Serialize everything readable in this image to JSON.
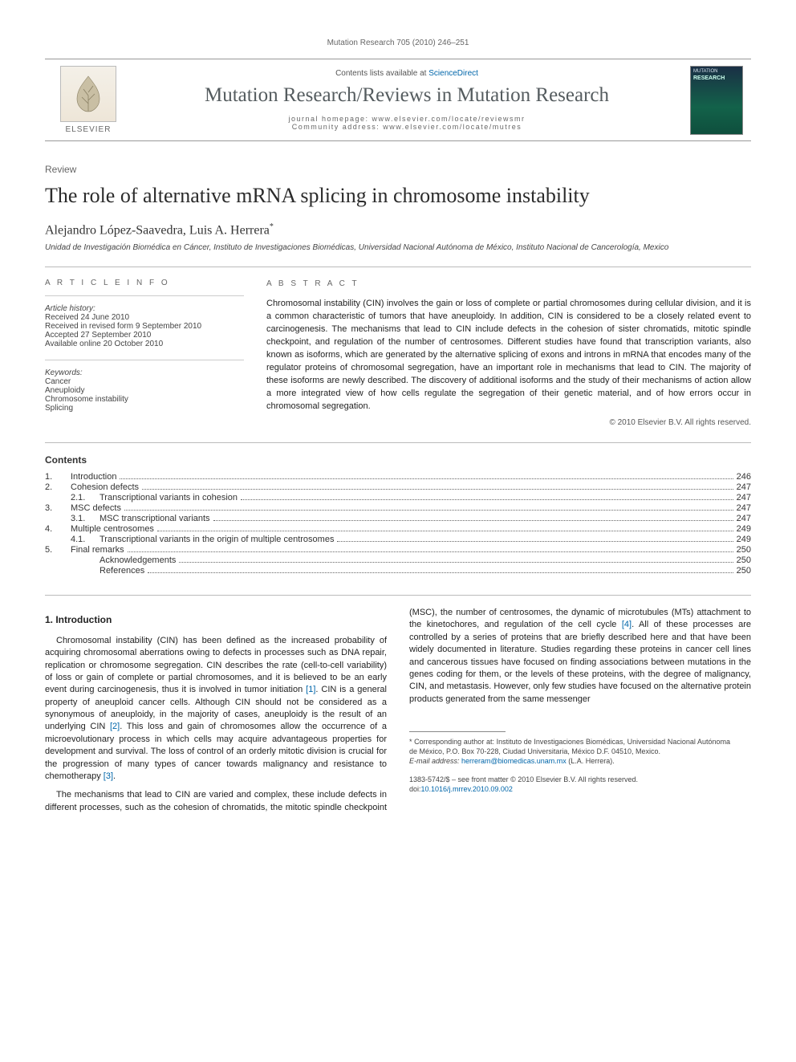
{
  "running_head": "Mutation Research 705 (2010) 246–251",
  "masthead": {
    "contents_prefix": "Contents lists available at ",
    "contents_link": "ScienceDirect",
    "banner_title": "Mutation Research/Reviews in Mutation Research",
    "homepage_label": "journal homepage: www.elsevier.com/locate/reviewsmr",
    "community_label": "Community address: www.elsevier.com/locate/mutres",
    "publisher": "ELSEVIER",
    "cover_top": "MUTATION",
    "cover_title": "RESEARCH"
  },
  "doc_type": "Review",
  "title": "The role of alternative mRNA splicing in chromosome instability",
  "authors": "Alejandro López-Saavedra, Luis A. Herrera",
  "author_marker": "*",
  "affiliation": "Unidad de Investigación Biomédica en Cáncer, Instituto de Investigaciones Biomédicas, Universidad Nacional Autónoma de México, Instituto Nacional de Cancerología, Mexico",
  "article_info": {
    "heading": "A R T I C L E  I N F O",
    "history_label": "Article history:",
    "received": "Received 24 June 2010",
    "revised": "Received in revised form 9 September 2010",
    "accepted": "Accepted 27 September 2010",
    "online": "Available online 20 October 2010",
    "keywords_label": "Keywords:",
    "keywords": [
      "Cancer",
      "Aneuploidy",
      "Chromosome instability",
      "Splicing"
    ]
  },
  "abstract": {
    "heading": "A B S T R A C T",
    "text": "Chromosomal instability (CIN) involves the gain or loss of complete or partial chromosomes during cellular division, and it is a common characteristic of tumors that have aneuploidy. In addition, CIN is considered to be a closely related event to carcinogenesis. The mechanisms that lead to CIN include defects in the cohesion of sister chromatids, mitotic spindle checkpoint, and regulation of the number of centrosomes. Different studies have found that transcription variants, also known as isoforms, which are generated by the alternative splicing of exons and introns in mRNA that encodes many of the regulator proteins of chromosomal segregation, have an important role in mechanisms that lead to CIN. The majority of these isoforms are newly described. The discovery of additional isoforms and the study of their mechanisms of action allow a more integrated view of how cells regulate the segregation of their genetic material, and of how errors occur in chromosomal segregation.",
    "copyright": "© 2010 Elsevier B.V. All rights reserved."
  },
  "contents_heading": "Contents",
  "toc": [
    {
      "num": "1.",
      "label": "Introduction",
      "page": "246",
      "sub": false
    },
    {
      "num": "2.",
      "label": "Cohesion defects",
      "page": "247",
      "sub": false
    },
    {
      "num": "2.1.",
      "label": "Transcriptional variants in cohesion",
      "page": "247",
      "sub": true
    },
    {
      "num": "3.",
      "label": "MSC defects",
      "page": "247",
      "sub": false
    },
    {
      "num": "3.1.",
      "label": "MSC transcriptional variants",
      "page": "247",
      "sub": true
    },
    {
      "num": "4.",
      "label": "Multiple centrosomes",
      "page": "249",
      "sub": false
    },
    {
      "num": "4.1.",
      "label": "Transcriptional variants in the origin of multiple centrosomes",
      "page": "249",
      "sub": true
    },
    {
      "num": "5.",
      "label": "Final remarks",
      "page": "250",
      "sub": false
    },
    {
      "num": "",
      "label": "Acknowledgements",
      "page": "250",
      "sub": true,
      "nonum": true
    },
    {
      "num": "",
      "label": "References",
      "page": "250",
      "sub": true,
      "nonum": true
    }
  ],
  "body": {
    "section1_heading": "1. Introduction",
    "p1a": "Chromosomal instability (CIN) has been defined as the increased probability of acquiring chromosomal aberrations owing to defects in processes such as DNA repair, replication or chromosome segregation. CIN describes the rate (cell-to-cell variability) of loss or gain of complete or partial chromosomes, and it is believed to be an early event during carcinogenesis, thus it is involved in tumor initiation ",
    "ref1": "[1]",
    "p1b": ". CIN is a general property of aneuploid cancer cells. Although CIN should not be considered as a synonymous of aneuploidy, in the majority of cases, aneuploidy is the result of an underlying CIN ",
    "ref2": "[2]",
    "p1c": ". This loss and gain of chromosomes allow the occurrence of a microevolutionary process in which cells may acquire advantageous properties for development and survival. The loss of control of an orderly mitotic division is crucial for the progression of many types of cancer towards malignancy and resistance to chemotherapy ",
    "ref3": "[3]",
    "p1d": ".",
    "p2a": "The mechanisms that lead to CIN are varied and complex, these include defects in different processes, such as the cohesion of chromatids, the mitotic spindle checkpoint (MSC), the number of centrosomes, the dynamic of microtubules (MTs) attachment to the kinetochores, and regulation of the cell cycle ",
    "ref4": "[4]",
    "p2b": ". All of these processes are controlled by a series of proteins that are briefly described here and that have been widely documented in literature. Studies regarding these proteins in cancer cell lines and cancerous tissues have focused on finding associations between mutations in the genes coding for them, or the levels of these proteins, with the degree of malignancy, CIN, and metastasis. However, only few studies have focused on the alternative protein products generated from the same messenger"
  },
  "footnotes": {
    "corr": "* Corresponding author at: Instituto de Investigaciones Biomédicas, Universidad Nacional Autónoma de México, P.O. Box 70-228, Ciudad Universitaria, México D.F. 04510, Mexico.",
    "email_label": "E-mail address: ",
    "email": "herreram@biomedicas.unam.mx",
    "email_after": " (L.A. Herrera).",
    "issn_line": "1383-5742/$ – see front matter © 2010 Elsevier B.V. All rights reserved.",
    "doi_prefix": "doi:",
    "doi": "10.1016/j.mrrev.2010.09.002"
  }
}
